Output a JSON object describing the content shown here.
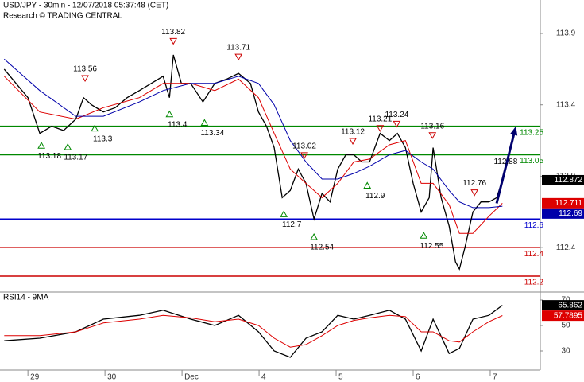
{
  "chart_data": [
    {
      "type": "line",
      "title": "USD/JPY - 30min - 12/07/2018 05:37:48 (CET)",
      "subtitle": "Research © TRADING CENTRAL",
      "xlim": [
        -8.7,
        159.6
      ],
      "ylim": [
        112.1,
        114.134
      ],
      "yticks": [
        113.9,
        113.4,
        112.9,
        112.4
      ],
      "series": [
        {
          "color": "#000000",
          "x": [
            -7.4,
            -3.7,
            0,
            3.7,
            7.4,
            11.1,
            14.9,
            17.3,
            19.8,
            23.5,
            27.2,
            30.9,
            34.7,
            38.4,
            42.1,
            44.1,
            45.3,
            47.8,
            50.7,
            54.5,
            58.2,
            61.9,
            65.6,
            69.3,
            71.8,
            74.3,
            76.7,
            79.2,
            81.7,
            84.2,
            86.6,
            89.1,
            91.6,
            94.1,
            96.5,
            99,
            101.5,
            104,
            106.4,
            109.7,
            112.6,
            115.1,
            117.6,
            120,
            122.5,
            125,
            126.2,
            128.7,
            131.2,
            133.2,
            134.4,
            136.1,
            138.6,
            141.1,
            143.6,
            146,
            147.8
          ],
          "values": [
            113.65,
            113.55,
            113.45,
            113.2,
            113.25,
            113.22,
            113.3,
            113.45,
            113.4,
            113.35,
            113.38,
            113.45,
            113.5,
            113.55,
            113.6,
            113.45,
            113.75,
            113.55,
            113.55,
            113.42,
            113.55,
            113.58,
            113.62,
            113.55,
            113.35,
            113.25,
            113.1,
            112.75,
            112.8,
            112.95,
            112.85,
            112.6,
            112.78,
            112.72,
            112.95,
            113.05,
            113.05,
            113.0,
            113.0,
            113.2,
            113.15,
            113.2,
            113.1,
            112.85,
            112.65,
            112.75,
            113.1,
            112.75,
            112.55,
            112.3,
            112.25,
            112.4,
            112.65,
            112.72,
            112.72,
            112.75,
            112.872
          ]
        },
        {
          "color": "#dd0000",
          "x": [
            -7.4,
            3.7,
            14.9,
            23.5,
            34.7,
            42.1,
            50.7,
            58.2,
            65.6,
            71.8,
            76.7,
            81.7,
            86.6,
            91.6,
            96.5,
            101.5,
            106.4,
            112.6,
            117.6,
            122.5,
            126.2,
            131.2,
            134.4,
            138.6,
            143.6,
            147.8
          ],
          "values": [
            113.6,
            113.35,
            113.3,
            113.38,
            113.45,
            113.55,
            113.55,
            113.5,
            113.58,
            113.45,
            113.2,
            112.95,
            112.85,
            112.75,
            112.85,
            113.0,
            113.02,
            113.12,
            113.15,
            112.85,
            112.85,
            112.7,
            112.5,
            112.5,
            112.62,
            112.711
          ]
        },
        {
          "color": "#0000aa",
          "x": [
            -7.4,
            3.7,
            14.9,
            23.5,
            34.7,
            42.1,
            50.7,
            58.2,
            65.6,
            71.8,
            76.7,
            81.7,
            86.6,
            91.6,
            96.5,
            101.5,
            106.4,
            112.6,
            117.6,
            122.5,
            126.2,
            131.2,
            134.4,
            138.6,
            143.6,
            147.8
          ],
          "values": [
            113.72,
            113.5,
            113.32,
            113.32,
            113.42,
            113.5,
            113.55,
            113.55,
            113.6,
            113.55,
            113.4,
            113.15,
            113.0,
            112.88,
            112.88,
            112.92,
            112.97,
            113.05,
            113.08,
            113.0,
            112.95,
            112.8,
            112.72,
            112.68,
            112.68,
            112.69
          ]
        }
      ],
      "levels": [
        {
          "value": 113.25,
          "color": "#008800"
        },
        {
          "value": 113.05,
          "color": "#008800"
        },
        {
          "value": 112.6,
          "color": "#0000cc"
        },
        {
          "value": 112.4,
          "color": "#cc0000"
        },
        {
          "value": 112.2,
          "color": "#cc0000"
        }
      ],
      "highs": {
        "x": [
          17.8,
          45.3,
          65.6,
          86.1,
          101.2,
          109.7,
          114.9,
          126.0,
          139.1
        ],
        "values": [
          113.56,
          113.82,
          113.71,
          113.02,
          113.12,
          113.21,
          113.24,
          113.16,
          112.76
        ]
      },
      "lows": {
        "x": [
          4.2,
          12.4,
          20.8,
          44.1,
          55,
          79.7,
          89.1,
          105.7,
          123.3
        ],
        "values": [
          113.18,
          113.17,
          113.3,
          113.4,
          113.34,
          112.7,
          112.54,
          112.9,
          112.55
        ]
      },
      "arrow": {
        "x": [
          146,
          152
        ],
        "y": [
          112.71,
          113.25
        ]
      },
      "annotation": {
        "text": "112.88",
        "x": 148.8,
        "y": 113.0
      }
    },
    {
      "type": "line",
      "title": "RSI14 - 9MA",
      "xlim": [
        -8.7,
        159.6
      ],
      "ylim": [
        15,
        76.25
      ],
      "yticks": [
        70,
        50,
        30
      ],
      "xticks": [
        {
          "value": 0,
          "label": "29"
        },
        {
          "value": 24,
          "label": "30"
        },
        {
          "value": 48,
          "label": "Dec"
        },
        {
          "value": 72,
          "label": "4"
        },
        {
          "value": 96,
          "label": "5"
        },
        {
          "value": 120,
          "label": "6"
        },
        {
          "value": 144,
          "label": "7"
        }
      ],
      "series": [
        {
          "color": "#000000",
          "x": [
            -7.4,
            3.7,
            14.9,
            23.5,
            34.7,
            42.1,
            50.7,
            58.2,
            65.6,
            71.8,
            76.7,
            81.7,
            86.6,
            91.6,
            96.5,
            101.5,
            106.4,
            112.6,
            117.6,
            122.5,
            126.2,
            131.2,
            134.4,
            138.6,
            143.6,
            147.8
          ],
          "values": [
            38,
            40,
            45,
            55,
            58,
            62,
            55,
            50,
            58,
            45,
            30,
            25,
            40,
            45,
            58,
            55,
            58,
            62,
            55,
            30,
            55,
            28,
            32,
            55,
            58,
            65.862
          ]
        },
        {
          "color": "#dd0000",
          "x": [
            -7.4,
            3.7,
            14.9,
            23.5,
            34.7,
            42.1,
            50.7,
            58.2,
            65.6,
            71.8,
            76.7,
            81.7,
            86.6,
            91.6,
            96.5,
            101.5,
            106.4,
            112.6,
            117.6,
            122.5,
            126.2,
            131.2,
            134.4,
            138.6,
            143.6,
            147.8
          ],
          "values": [
            42,
            42,
            45,
            52,
            55,
            58,
            56,
            53,
            55,
            50,
            40,
            33,
            35,
            42,
            50,
            54,
            56,
            58,
            57,
            45,
            45,
            38,
            37,
            45,
            53,
            57.7895
          ]
        }
      ]
    }
  ]
}
